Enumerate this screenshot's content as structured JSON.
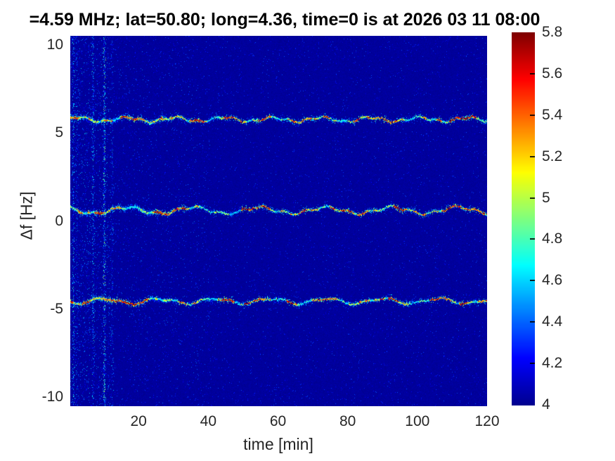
{
  "chart_data": {
    "type": "heatmap",
    "title": "=4.59 MHz;  lat=50.80; long=4.36, time=0 is at 2026 03 11 08:00",
    "xlabel": "time [min]",
    "ylabel": "Δf [Hz]",
    "xlim": [
      0.4,
      120
    ],
    "ylim": [
      -10.5,
      10.5
    ],
    "xticks": [
      20,
      40,
      60,
      80,
      100,
      120
    ],
    "yticks": [
      10,
      5,
      0,
      -5,
      -10
    ],
    "grid": false,
    "legend": "none",
    "colormap": "jet",
    "colormap_stops": [
      [
        0,
        "#000090"
      ],
      [
        0.125,
        "#0000ff"
      ],
      [
        0.375,
        "#00ffff"
      ],
      [
        0.625,
        "#ffff00"
      ],
      [
        0.875,
        "#ff0000"
      ],
      [
        1,
        "#800000"
      ]
    ],
    "color_range": [
      4,
      5.8
    ],
    "colorbar_ticks": [
      {
        "v": 5.8,
        "label": "5.8"
      },
      {
        "v": 5.6,
        "label": "5.6"
      },
      {
        "v": 5.4,
        "label": "5.4"
      },
      {
        "v": 5.2,
        "label": "5.2"
      },
      {
        "v": 5.0,
        "label": "5"
      },
      {
        "v": 4.8,
        "label": "4.8"
      },
      {
        "v": 4.6,
        "label": "4.6"
      },
      {
        "v": 4.4,
        "label": "4.4"
      },
      {
        "v": 4.2,
        "label": "4.2"
      },
      {
        "v": 4.0,
        "label": "4"
      }
    ],
    "background_value": 4.02,
    "traces": [
      {
        "center_hz": 5.78,
        "amps": [
          0.12,
          0.06
        ],
        "periods_min": [
          14.0,
          5.3
        ],
        "phases": [
          0.5,
          2.1
        ],
        "value_range": [
          4.6,
          5.8
        ]
      },
      {
        "center_hz": 0.62,
        "amps": [
          0.18,
          0.07
        ],
        "periods_min": [
          19.0,
          6.1
        ],
        "phases": [
          2.4,
          0.8
        ],
        "value_range": [
          4.6,
          5.8
        ]
      },
      {
        "center_hz": -4.52,
        "amps": [
          0.14,
          0.06
        ],
        "periods_min": [
          16.0,
          7.7
        ],
        "phases": [
          4.0,
          1.6
        ],
        "value_range": [
          4.6,
          5.8
        ]
      }
    ],
    "noise_stripes": [
      {
        "time_min": 1.2,
        "density": 0.3,
        "max_value": 4.8
      },
      {
        "time_min": 2.3,
        "density": 0.14,
        "max_value": 4.6
      },
      {
        "time_min": 6.8,
        "density": 0.28,
        "max_value": 4.8
      },
      {
        "time_min": 10.0,
        "density": 0.5,
        "max_value": 5.0
      },
      {
        "time_min": 12.3,
        "density": 0.12,
        "max_value": 4.6
      }
    ],
    "seed": 1337,
    "style": {
      "title_color": "#000000",
      "text_color": "#262626",
      "figure_background": "#ffffff"
    }
  }
}
